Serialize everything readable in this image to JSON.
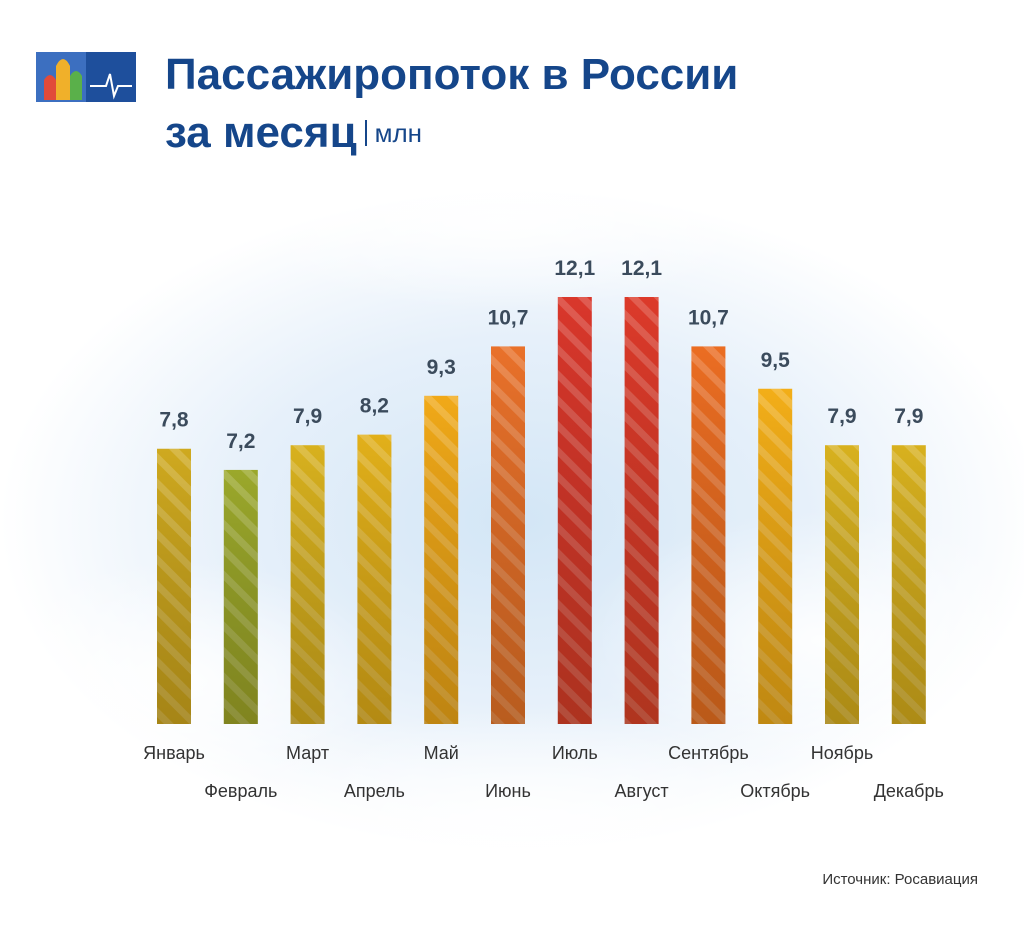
{
  "chart_data": {
    "type": "bar",
    "title": [
      "Пассажиропоток в России",
      "за месяц"
    ],
    "unit": "млн",
    "categories": [
      "Январь",
      "Февраль",
      "Март",
      "Апрель",
      "Май",
      "Июнь",
      "Июль",
      "Август",
      "Сентябрь",
      "Октябрь",
      "Ноябрь",
      "Декабрь"
    ],
    "values": [
      7.8,
      7.2,
      7.9,
      8.2,
      9.3,
      10.7,
      12.1,
      12.1,
      10.7,
      9.5,
      7.9,
      7.9
    ],
    "value_labels": [
      "7,8",
      "7,2",
      "7,9",
      "8,2",
      "9,3",
      "10,7",
      "12,1",
      "12,1",
      "10,7",
      "9,5",
      "7,9",
      "7,9"
    ],
    "colors": [
      "#cfa91f",
      "#9ba82b",
      "#d8b11e",
      "#e2b01a",
      "#f1a918",
      "#e9712a",
      "#d9372b",
      "#dc3a2a",
      "#eb6d22",
      "#f3ae18",
      "#d8b11e",
      "#d8b11e"
    ],
    "source": "Источник: Росавиация"
  }
}
